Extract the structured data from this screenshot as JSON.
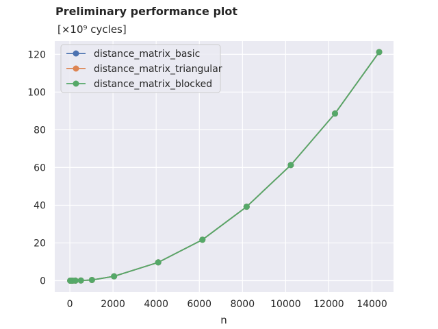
{
  "chart_data": {
    "type": "line",
    "title": "Preliminary performance plot",
    "subtitle": "[×10⁹ cycles]",
    "xlabel": "n",
    "ylabel": "",
    "xlim": [
      -700,
      15000
    ],
    "ylim": [
      -6,
      127
    ],
    "xticks": [
      0,
      2000,
      4000,
      6000,
      8000,
      10000,
      12000,
      14000
    ],
    "yticks": [
      0,
      20,
      40,
      60,
      80,
      100,
      120
    ],
    "grid": true,
    "legend_position": "top-left",
    "background_color": "#eaeaf2",
    "x": [
      16,
      64,
      128,
      256,
      512,
      1024,
      2048,
      4096,
      6144,
      8192,
      10240,
      12288,
      14336
    ],
    "series": [
      {
        "name": "distance_matrix_basic",
        "color": "#4c72b0",
        "values": [
          0.0,
          0.0,
          0.0,
          0.02,
          0.09,
          0.37,
          2.3,
          9.7,
          21.7,
          39.2,
          61.3,
          88.6,
          121.2
        ]
      },
      {
        "name": "distance_matrix_triangular",
        "color": "#dd8452",
        "values": [
          0.0,
          0.0,
          0.0,
          0.02,
          0.09,
          0.37,
          2.3,
          9.7,
          21.7,
          39.2,
          61.3,
          88.6,
          121.2
        ]
      },
      {
        "name": "distance_matrix_blocked",
        "color": "#55a868",
        "values": [
          0.0,
          0.0,
          0.0,
          0.02,
          0.09,
          0.37,
          2.3,
          9.7,
          21.7,
          39.2,
          61.3,
          88.6,
          121.2
        ]
      }
    ]
  }
}
